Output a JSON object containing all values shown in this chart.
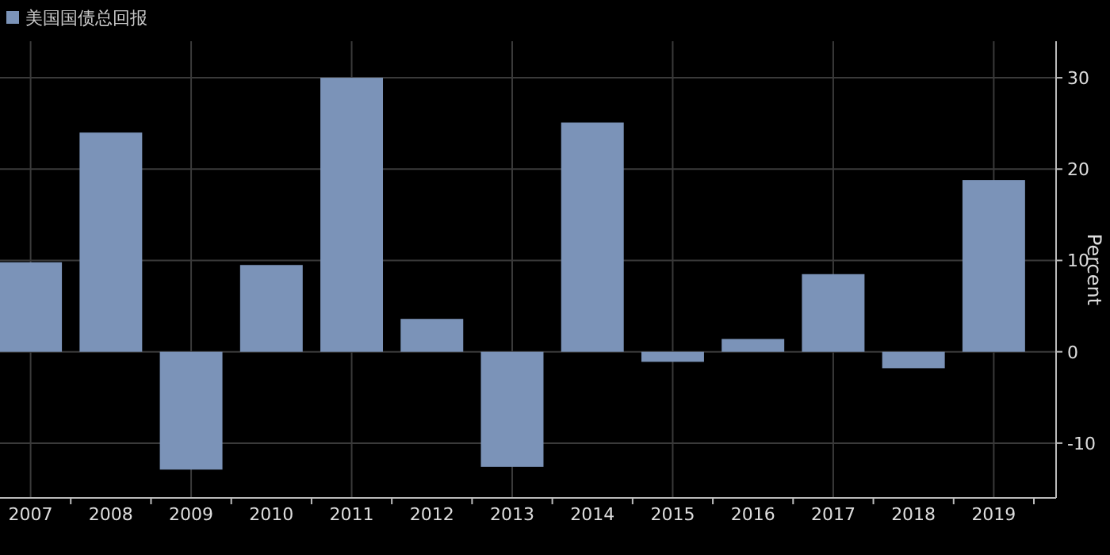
{
  "chart_data": {
    "type": "bar",
    "categories": [
      "2007",
      "2008",
      "2009",
      "2010",
      "2011",
      "2012",
      "2013",
      "2014",
      "2015",
      "2016",
      "2017",
      "2018",
      "2019"
    ],
    "series": [
      {
        "name": "美国国债总回报",
        "color": "#7b93b8",
        "values": [
          9.8,
          24.0,
          -12.9,
          9.5,
          30.0,
          3.6,
          -12.6,
          25.1,
          -1.1,
          1.4,
          8.5,
          -1.8,
          18.8
        ]
      }
    ],
    "ylabel": "Percent",
    "ylim": [
      -16,
      34
    ],
    "yticks": [
      -10,
      0,
      10,
      20,
      30
    ],
    "grid": true,
    "legend": "top left"
  }
}
